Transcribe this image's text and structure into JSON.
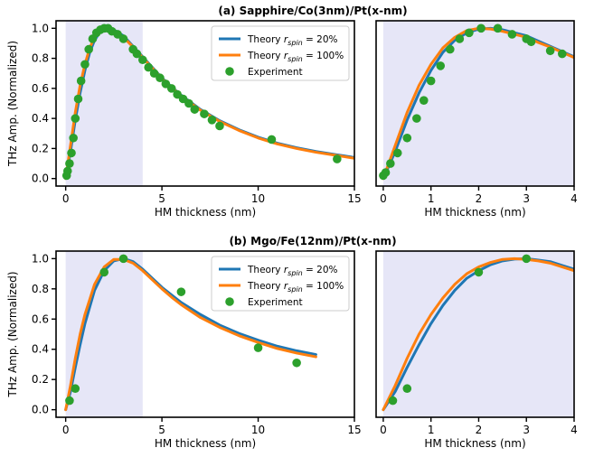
{
  "figure": {
    "row_titles": [
      "(a) Sapphire/Co(3nm)/Pt(x-nm)",
      "(b) Mgo/Fe(12nm)/Pt(x-nm)"
    ],
    "legend_theory_prefix": "Theory ",
    "legend_theory_var": "r",
    "legend_theory_sub": "spin",
    "legend_experiment": "Experiment"
  },
  "chart_data": [
    {
      "type": "line",
      "panel": "a-left",
      "title": "(a) Sapphire/Co(3nm)/Pt(x-nm)",
      "xlabel": "HM thickness (nm)",
      "ylabel": "THz Amp. (Normalized)",
      "xlim": [
        -0.5,
        15
      ],
      "ylim": [
        -0.05,
        1.05
      ],
      "xticks": [
        0,
        5,
        10,
        15
      ],
      "yticks": [
        0.0,
        0.2,
        0.4,
        0.6,
        0.8,
        1.0
      ],
      "shaded_region": [
        0,
        4
      ],
      "legend": "top-right",
      "series": [
        {
          "name": "Theory r_spin = 20%",
          "color": "#1f77b4",
          "x": [
            0,
            0.25,
            0.5,
            0.75,
            1.0,
            1.25,
            1.5,
            1.75,
            2.0,
            2.25,
            2.5,
            3.0,
            3.5,
            4.0,
            4.5,
            5.0,
            5.5,
            6.0,
            7.0,
            8.0,
            9.0,
            10.0,
            11.0,
            12.0,
            13.0,
            14.0,
            15.0
          ],
          "y": [
            0.0,
            0.18,
            0.39,
            0.57,
            0.72,
            0.84,
            0.92,
            0.97,
            0.995,
            1.0,
            0.99,
            0.95,
            0.88,
            0.81,
            0.74,
            0.67,
            0.61,
            0.555,
            0.46,
            0.385,
            0.325,
            0.275,
            0.235,
            0.205,
            0.18,
            0.16,
            0.14
          ]
        },
        {
          "name": "Theory r_spin = 100%",
          "color": "#ff7f0e",
          "x": [
            0,
            0.25,
            0.5,
            0.75,
            1.0,
            1.25,
            1.5,
            1.75,
            2.0,
            2.25,
            2.5,
            3.0,
            3.5,
            4.0,
            4.5,
            5.0,
            5.5,
            6.0,
            7.0,
            8.0,
            9.0,
            10.0,
            11.0,
            12.0,
            13.0,
            14.0,
            15.0
          ],
          "y": [
            0.0,
            0.22,
            0.44,
            0.62,
            0.76,
            0.87,
            0.94,
            0.985,
            1.0,
            0.995,
            0.98,
            0.94,
            0.875,
            0.805,
            0.735,
            0.665,
            0.605,
            0.55,
            0.455,
            0.38,
            0.32,
            0.27,
            0.23,
            0.2,
            0.175,
            0.155,
            0.135
          ]
        },
        {
          "name": "Experiment",
          "color": "#2ca02c",
          "marker": "circle",
          "x": [
            0.05,
            0.1,
            0.2,
            0.3,
            0.4,
            0.5,
            0.65,
            0.8,
            1.0,
            1.2,
            1.4,
            1.6,
            1.8,
            2.0,
            2.2,
            2.4,
            2.7,
            3.0,
            3.5,
            3.7,
            4.0,
            4.3,
            4.6,
            4.9,
            5.2,
            5.5,
            5.8,
            6.1,
            6.4,
            6.7,
            7.2,
            7.6,
            8.0,
            10.7,
            14.1
          ],
          "y": [
            0.02,
            0.05,
            0.1,
            0.17,
            0.27,
            0.4,
            0.53,
            0.65,
            0.76,
            0.86,
            0.93,
            0.97,
            0.99,
            1.0,
            1.0,
            0.98,
            0.96,
            0.93,
            0.86,
            0.83,
            0.79,
            0.74,
            0.7,
            0.67,
            0.63,
            0.6,
            0.56,
            0.53,
            0.5,
            0.46,
            0.43,
            0.39,
            0.35,
            0.26,
            0.13
          ]
        }
      ]
    },
    {
      "type": "line",
      "panel": "a-right",
      "xlabel": "HM thickness (nm)",
      "xlim": [
        -0.15,
        4
      ],
      "ylim": [
        -0.05,
        1.05
      ],
      "xticks": [
        0,
        1,
        2,
        3,
        4
      ],
      "yticks": [],
      "shaded_region": [
        0,
        4
      ],
      "series": [
        {
          "name": "Theory r_spin = 20%",
          "color": "#1f77b4",
          "x": [
            0,
            0.25,
            0.5,
            0.75,
            1.0,
            1.25,
            1.5,
            1.75,
            2.0,
            2.25,
            2.5,
            2.75,
            3.0,
            3.25,
            3.5,
            3.75,
            4.0
          ],
          "y": [
            0.0,
            0.18,
            0.39,
            0.57,
            0.72,
            0.84,
            0.92,
            0.97,
            0.995,
            1.0,
            0.99,
            0.97,
            0.95,
            0.915,
            0.88,
            0.845,
            0.81
          ]
        },
        {
          "name": "Theory r_spin = 100%",
          "color": "#ff7f0e",
          "x": [
            0,
            0.25,
            0.5,
            0.75,
            1.0,
            1.25,
            1.5,
            1.75,
            2.0,
            2.25,
            2.5,
            2.75,
            3.0,
            3.25,
            3.5,
            3.75,
            4.0
          ],
          "y": [
            0.0,
            0.22,
            0.44,
            0.62,
            0.76,
            0.87,
            0.94,
            0.985,
            1.0,
            0.995,
            0.98,
            0.96,
            0.94,
            0.905,
            0.875,
            0.84,
            0.805
          ]
        },
        {
          "name": "Experiment",
          "color": "#2ca02c",
          "marker": "circle",
          "x": [
            0.0,
            0.05,
            0.15,
            0.3,
            0.5,
            0.7,
            0.85,
            1.0,
            1.2,
            1.4,
            1.6,
            1.8,
            2.05,
            2.4,
            2.7,
            3.0,
            3.1,
            3.5,
            3.75
          ],
          "y": [
            0.02,
            0.04,
            0.1,
            0.17,
            0.27,
            0.4,
            0.52,
            0.65,
            0.75,
            0.86,
            0.93,
            0.97,
            1.0,
            1.0,
            0.96,
            0.93,
            0.91,
            0.85,
            0.83
          ]
        }
      ]
    },
    {
      "type": "line",
      "panel": "b-left",
      "title": "(b) Mgo/Fe(12nm)/Pt(x-nm)",
      "xlabel": "HM thickness (nm)",
      "ylabel": "THz Amp. (Normalized)",
      "xlim": [
        -0.5,
        15
      ],
      "ylim": [
        -0.05,
        1.05
      ],
      "xticks": [
        0,
        5,
        10,
        15
      ],
      "yticks": [
        0.0,
        0.2,
        0.4,
        0.6,
        0.8,
        1.0
      ],
      "shaded_region": [
        0,
        4
      ],
      "legend": "top-right",
      "series": [
        {
          "name": "Theory r_spin = 20%",
          "color": "#1f77b4",
          "x": [
            0,
            0.25,
            0.5,
            0.75,
            1.0,
            1.5,
            2.0,
            2.5,
            3.0,
            3.5,
            4.0,
            4.5,
            5.0,
            5.5,
            6.0,
            7.0,
            8.0,
            9.0,
            10.0,
            11.0,
            12.0,
            13.0
          ],
          "y": [
            0.0,
            0.12,
            0.28,
            0.43,
            0.57,
            0.79,
            0.92,
            0.985,
            1.0,
            0.98,
            0.93,
            0.87,
            0.81,
            0.76,
            0.71,
            0.63,
            0.56,
            0.505,
            0.46,
            0.42,
            0.39,
            0.365
          ]
        },
        {
          "name": "Theory r_spin = 100%",
          "color": "#ff7f0e",
          "x": [
            0,
            0.25,
            0.5,
            0.75,
            1.0,
            1.5,
            2.0,
            2.5,
            3.0,
            3.5,
            4.0,
            4.5,
            5.0,
            5.5,
            6.0,
            7.0,
            8.0,
            9.0,
            10.0,
            11.0,
            12.0,
            13.0
          ],
          "y": [
            0.0,
            0.16,
            0.34,
            0.5,
            0.63,
            0.83,
            0.945,
            0.995,
            0.995,
            0.97,
            0.92,
            0.86,
            0.8,
            0.745,
            0.695,
            0.61,
            0.545,
            0.49,
            0.445,
            0.405,
            0.375,
            0.35
          ]
        },
        {
          "name": "Experiment",
          "color": "#2ca02c",
          "marker": "circle",
          "x": [
            0.2,
            0.5,
            2.0,
            3.0,
            6.0,
            10.0,
            12.0
          ],
          "y": [
            0.06,
            0.14,
            0.91,
            1.0,
            0.78,
            0.41,
            0.31
          ]
        }
      ]
    },
    {
      "type": "line",
      "panel": "b-right",
      "xlabel": "HM thickness (nm)",
      "xlim": [
        -0.15,
        4
      ],
      "ylim": [
        -0.05,
        1.05
      ],
      "xticks": [
        0,
        1,
        2,
        3,
        4
      ],
      "yticks": [],
      "shaded_region": [
        0,
        4
      ],
      "series": [
        {
          "name": "Theory r_spin = 20%",
          "color": "#1f77b4",
          "x": [
            0,
            0.25,
            0.5,
            0.75,
            1.0,
            1.25,
            1.5,
            1.75,
            2.0,
            2.25,
            2.5,
            2.75,
            3.0,
            3.25,
            3.5,
            3.75,
            4.0
          ],
          "y": [
            0.0,
            0.12,
            0.28,
            0.43,
            0.57,
            0.69,
            0.79,
            0.87,
            0.92,
            0.96,
            0.985,
            0.997,
            1.0,
            0.99,
            0.98,
            0.955,
            0.93
          ]
        },
        {
          "name": "Theory r_spin = 100%",
          "color": "#ff7f0e",
          "x": [
            0,
            0.25,
            0.5,
            0.75,
            1.0,
            1.25,
            1.5,
            1.75,
            2.0,
            2.25,
            2.5,
            2.75,
            3.0,
            3.25,
            3.5,
            3.75,
            4.0
          ],
          "y": [
            0.0,
            0.16,
            0.34,
            0.5,
            0.63,
            0.74,
            0.83,
            0.9,
            0.945,
            0.975,
            0.995,
            1.0,
            0.995,
            0.985,
            0.97,
            0.945,
            0.92
          ]
        },
        {
          "name": "Experiment",
          "color": "#2ca02c",
          "marker": "circle",
          "x": [
            0.2,
            0.5,
            2.0,
            3.0
          ],
          "y": [
            0.06,
            0.14,
            0.91,
            1.0
          ]
        }
      ]
    }
  ]
}
